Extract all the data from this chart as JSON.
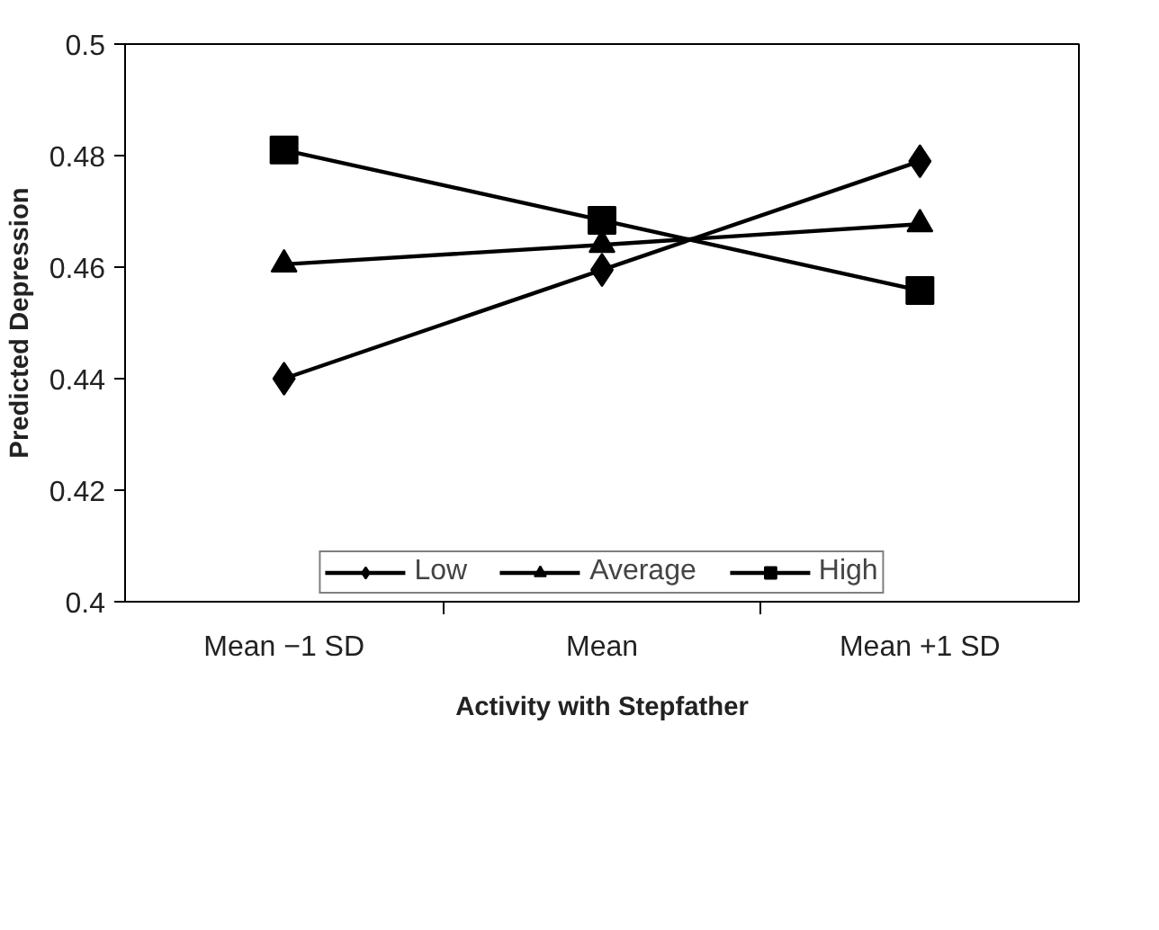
{
  "chart_data": {
    "type": "line",
    "xlabel": "Activity with Stepfather",
    "ylabel": "Predicted Depression",
    "categories": [
      "Mean −1 SD",
      "Mean",
      "Mean +1 SD"
    ],
    "series": [
      {
        "name": "Low",
        "color": "#000000",
        "marker": "diamond",
        "values": [
          0.44,
          0.4595,
          0.479
        ]
      },
      {
        "name": "Average",
        "color": "#000000",
        "marker": "triangle",
        "values": [
          0.4605,
          0.464,
          0.4677
        ]
      },
      {
        "name": "High",
        "color": "#000000",
        "marker": "square",
        "values": [
          0.481,
          0.4684,
          0.4558
        ]
      }
    ],
    "ylim": [
      0.4,
      0.5
    ],
    "yticks": [
      0.4,
      0.42,
      0.44,
      0.46,
      0.48,
      0.5
    ],
    "grid": false,
    "legend": "bottom",
    "line_style": "solid"
  }
}
